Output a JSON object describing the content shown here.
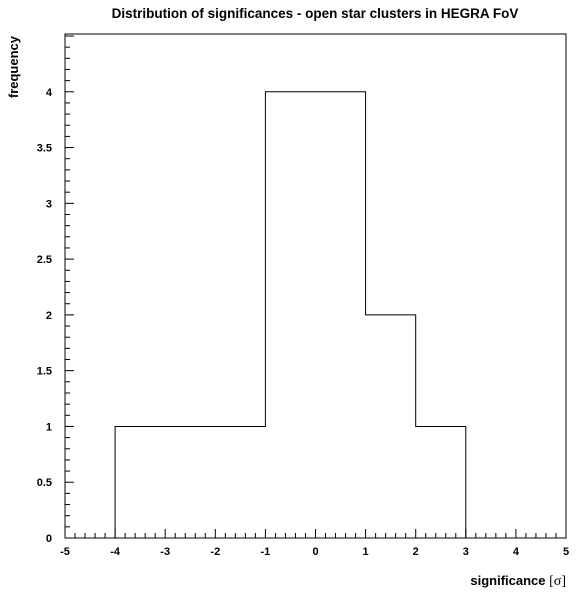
{
  "chart_data": {
    "type": "bar",
    "subtype": "histogram-step",
    "title": "Distribution of significances - open star clusters in HEGRA FoV",
    "xlabel": "significance",
    "xlabel_unit": "[σ]",
    "ylabel": "frequency",
    "xlim": [
      -5,
      5
    ],
    "ylim": [
      0,
      4.5
    ],
    "bin_edges": [
      -4,
      -3,
      -2,
      -1,
      0,
      1,
      2,
      3
    ],
    "values": [
      1,
      1,
      1,
      4,
      4,
      2,
      1
    ],
    "x_ticks": [
      "-5",
      "-4",
      "-3",
      "-2",
      "-1",
      "0",
      "1",
      "2",
      "3",
      "4",
      "5"
    ],
    "y_ticks": [
      "0",
      "0.5",
      "1",
      "1.5",
      "2",
      "2.5",
      "3",
      "3.5",
      "4"
    ],
    "grid": false,
    "legend": "none"
  }
}
